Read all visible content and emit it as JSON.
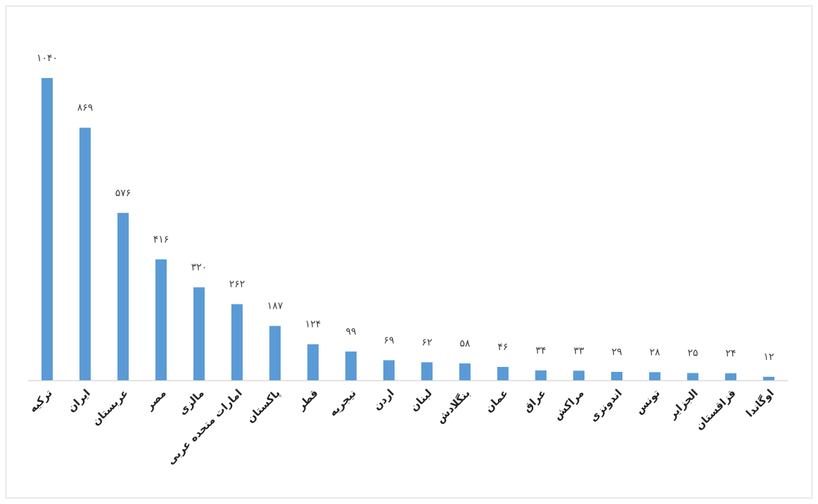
{
  "chart_data": {
    "type": "bar",
    "categories": [
      "ترکیه",
      "ایران",
      "عربستان",
      "مصر",
      "مالزی",
      "امارات متحده عربی",
      "پاکستان",
      "قطر",
      "نیجریه",
      "اردن",
      "لبنان",
      "بنگلادش",
      "عمان",
      "عراق",
      "مراکش",
      "اندونزی",
      "تونس",
      "الجزایر",
      "قزاقستان",
      "اوگاندا"
    ],
    "values": [
      1040,
      869,
      576,
      416,
      320,
      262,
      187,
      124,
      99,
      69,
      62,
      58,
      46,
      34,
      33,
      29,
      28,
      25,
      24,
      12
    ],
    "value_labels": [
      "۱۰۴۰",
      "۸۶۹",
      "۵۷۶",
      "۴۱۶",
      "۳۲۰",
      "۲۶۲",
      "۱۸۷",
      "۱۲۴",
      "۹۹",
      "۶۹",
      "۶۲",
      "۵۸",
      "۴۶",
      "۳۴",
      "۳۳",
      "۲۹",
      "۲۸",
      "۲۵",
      "۲۴",
      "۱۲"
    ],
    "color": "#5b9bd5"
  }
}
